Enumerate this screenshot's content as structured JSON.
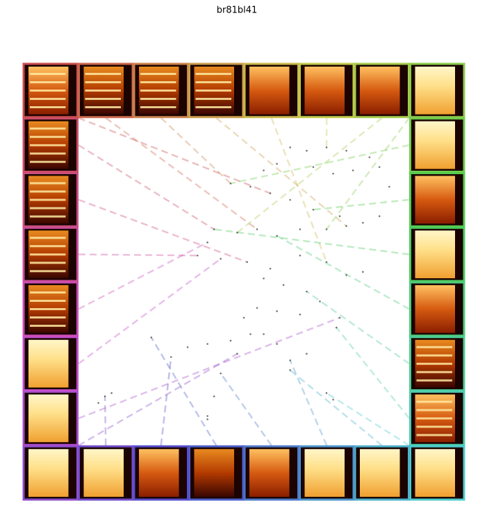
{
  "chart_data": {
    "type": "scatter",
    "title": "br81bl41",
    "xlim": [
      0,
      100
    ],
    "ylim": [
      0,
      100
    ],
    "color": "#555555",
    "x": [
      64,
      69,
      75,
      81,
      88,
      91,
      56,
      60,
      71,
      77,
      83,
      94,
      46,
      52,
      58,
      64,
      71,
      79,
      86,
      91,
      41,
      48,
      54,
      60,
      67,
      75,
      81,
      39,
      36,
      43,
      51,
      58,
      67,
      75,
      81,
      86,
      56,
      62,
      69,
      73,
      67,
      60,
      54,
      50,
      52,
      46,
      39,
      33,
      28,
      22,
      48,
      43,
      41,
      39,
      39,
      56,
      60,
      64,
      69,
      64,
      75,
      77,
      78,
      79,
      8,
      10,
      6
    ],
    "values": [
      91,
      90,
      91,
      90,
      88,
      85,
      84,
      86,
      85,
      83,
      84,
      79,
      80,
      79,
      77,
      75,
      72,
      70,
      68,
      70,
      66,
      65,
      66,
      64,
      66,
      66,
      67,
      62,
      58,
      57,
      56,
      54,
      58,
      56,
      52,
      53,
      51,
      49,
      47,
      44,
      40,
      41,
      42,
      39,
      34,
      32,
      31,
      30,
      27,
      33,
      28,
      22,
      15,
      9,
      8,
      34,
      31,
      26,
      28,
      23,
      16,
      14,
      36,
      39,
      15,
      16,
      13
    ]
  }
}
